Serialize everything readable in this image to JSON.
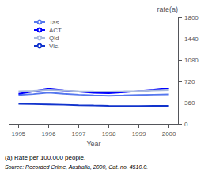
{
  "chart_data": {
    "type": "line",
    "x": [
      1995,
      1995.5,
      1996,
      1996.5,
      1997,
      1997.5,
      1998,
      1998.5,
      1999,
      1999.5,
      2000
    ],
    "series": [
      {
        "name": "Tas.",
        "color": "#5577ee",
        "values": [
          490,
          505,
          530,
          510,
          495,
          485,
          478,
          482,
          490,
          495,
          500
        ]
      },
      {
        "name": "ACT",
        "color": "#0000ff",
        "values": [
          510,
          550,
          590,
          565,
          545,
          525,
          520,
          535,
          555,
          575,
          600
        ]
      },
      {
        "name": "Qld",
        "color": "#aabbdd",
        "values": [
          555,
          560,
          575,
          565,
          555,
          550,
          548,
          552,
          558,
          565,
          572
        ]
      },
      {
        "name": "Vic.",
        "color": "#1133cc",
        "values": [
          340,
          335,
          330,
          325,
          318,
          312,
          308,
          305,
          305,
          307,
          308
        ]
      }
    ],
    "xlim": [
      1994.7,
      2000.3
    ],
    "xticks": [
      1995,
      1996,
      1997,
      1998,
      1999,
      2000
    ],
    "ylim": [
      0,
      1800
    ],
    "yticks": [
      0,
      360,
      720,
      1080,
      1440,
      1800
    ],
    "xlabel": "Year",
    "ylabel": "rate(a)",
    "annotations": [
      "(a) Rate per 100,000 people.",
      "Source: Recorded Crime, Australia, 2000, Cat. no. 4510.0."
    ],
    "legend": "upper left",
    "grid": false
  }
}
